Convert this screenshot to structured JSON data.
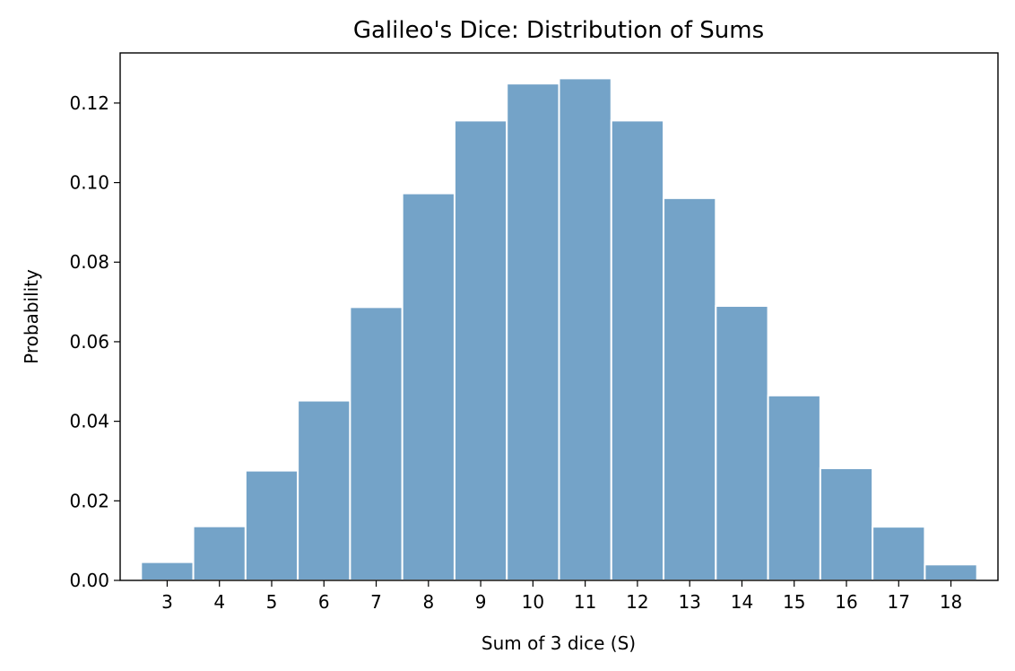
{
  "chart_data": {
    "type": "bar",
    "title": "Galileo's Dice: Distribution of Sums",
    "xlabel": "Sum of 3 dice (S)",
    "ylabel": "Probability",
    "categories": [
      "3",
      "4",
      "5",
      "6",
      "7",
      "8",
      "9",
      "10",
      "11",
      "12",
      "13",
      "14",
      "15",
      "16",
      "17",
      "18"
    ],
    "values": [
      0.0046,
      0.0136,
      0.0276,
      0.0452,
      0.0687,
      0.0973,
      0.1156,
      0.1249,
      0.1262,
      0.1156,
      0.0961,
      0.069,
      0.0465,
      0.0282,
      0.0135,
      0.004
    ],
    "yticks": [
      "0.00",
      "0.02",
      "0.04",
      "0.06",
      "0.08",
      "0.10",
      "0.12"
    ],
    "ylim": [
      0,
      0.1326
    ],
    "xlim": [
      2.1,
      18.9
    ],
    "grid": false,
    "bar_color": "#74a3c8",
    "bar_edge_color": "#ffffff"
  }
}
